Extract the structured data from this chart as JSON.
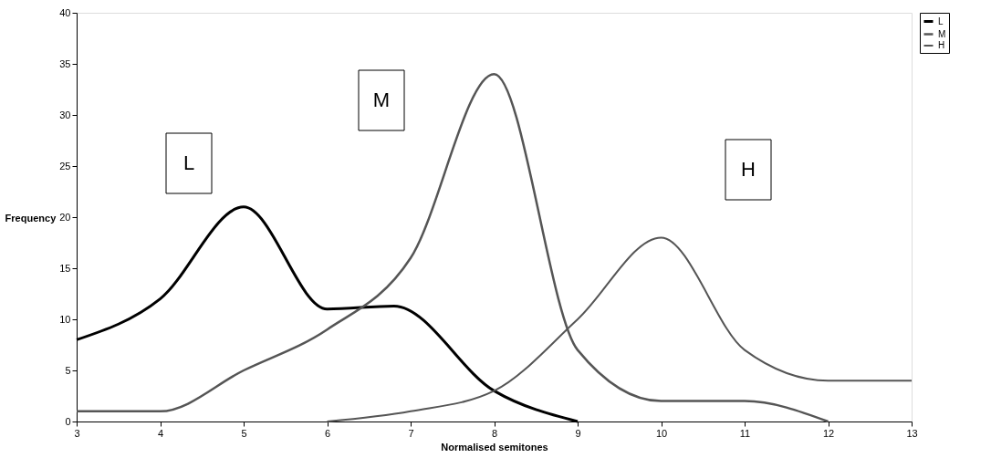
{
  "chart_data": {
    "type": "line",
    "xlabel": "Normalised semitones",
    "ylabel": "Frequency",
    "xlim": [
      3,
      13
    ],
    "xticks": [
      3,
      4,
      5,
      6,
      7,
      8,
      9,
      10,
      11,
      12,
      13
    ],
    "ylim": [
      0,
      40
    ],
    "yticks": [
      0,
      5,
      10,
      15,
      20,
      25,
      30,
      35,
      40
    ],
    "grid": false,
    "legend": "right",
    "marker": "none",
    "line_style": "solid",
    "series": [
      {
        "name": "L",
        "color": "#000000",
        "x": [
          3,
          4,
          5,
          6,
          6.8,
          8,
          9
        ],
        "values": [
          8,
          12,
          21,
          11,
          11.3,
          3,
          0
        ]
      },
      {
        "name": "M",
        "color": "#555555",
        "x": [
          3,
          4,
          5,
          6,
          7,
          8,
          9,
          10,
          11,
          12
        ],
        "values": [
          1,
          1,
          5,
          9,
          16,
          34,
          7,
          2,
          2,
          0
        ]
      },
      {
        "name": "H",
        "color": "#555555",
        "x": [
          6,
          7,
          8,
          9,
          10,
          11,
          12,
          13
        ],
        "values": [
          0,
          1,
          3,
          10,
          18,
          7,
          4,
          4
        ]
      }
    ],
    "annotations": [
      "L",
      "M",
      "H"
    ]
  }
}
